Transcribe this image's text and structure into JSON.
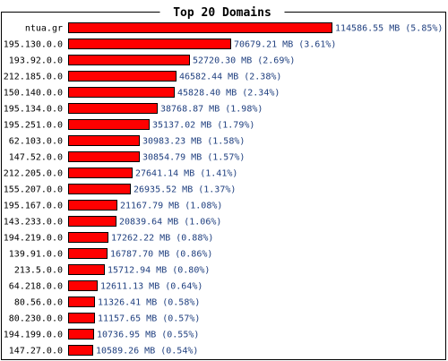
{
  "colors": {
    "bar_fill": "#ff0000",
    "bar_stroke": "#000000",
    "value_text": "#1f3f7f",
    "label_text": "#000000",
    "background": "#ffffff"
  },
  "chart_data": {
    "type": "bar",
    "orientation": "horizontal",
    "title": "Top 20 Domains",
    "xlabel": "",
    "ylabel": "",
    "unit": "MB",
    "grid": false,
    "legend": "none",
    "categories": [
      "ntua.gr",
      "195.130.0.0",
      "193.92.0.0",
      "212.185.0.0",
      "150.140.0.0",
      "195.134.0.0",
      "195.251.0.0",
      "62.103.0.0",
      "147.52.0.0",
      "212.205.0.0",
      "155.207.0.0",
      "195.167.0.0",
      "143.233.0.0",
      "194.219.0.0",
      "139.91.0.0",
      "213.5.0.0",
      "64.218.0.0",
      "80.56.0.0",
      "80.230.0.0",
      "194.199.0.0",
      "147.27.0.0"
    ],
    "values": [
      114586.55,
      70679.21,
      52720.3,
      46582.44,
      45828.4,
      38768.87,
      35137.02,
      30983.23,
      30854.79,
      27641.14,
      26935.52,
      21167.79,
      20839.64,
      17262.22,
      16787.7,
      15712.94,
      12611.13,
      11326.41,
      11157.65,
      10736.95,
      10589.26
    ],
    "value_labels": [
      "114586.55 MB (5.85%)",
      "70679.21 MB (3.61%)",
      "52720.30 MB (2.69%)",
      "46582.44 MB (2.38%)",
      "45828.40 MB (2.34%)",
      "38768.87 MB (1.98%)",
      "35137.02 MB (1.79%)",
      "30983.23 MB (1.58%)",
      "30854.79 MB (1.57%)",
      "27641.14 MB (1.41%)",
      "26935.52 MB (1.37%)",
      "21167.79 MB (1.08%)",
      "20839.64 MB (1.06%)",
      "17262.22 MB (0.88%)",
      "16787.70 MB (0.86%)",
      "15712.94 MB (0.80%)",
      "12611.13 MB (0.64%)",
      "11326.41 MB (0.58%)",
      "11157.65 MB (0.57%)",
      "10736.95 MB (0.55%)",
      "10589.26 MB (0.54%)"
    ],
    "percentages": [
      5.85,
      3.61,
      2.69,
      2.38,
      2.34,
      1.98,
      1.79,
      1.58,
      1.57,
      1.41,
      1.37,
      1.08,
      1.06,
      0.88,
      0.86,
      0.8,
      0.64,
      0.58,
      0.57,
      0.55,
      0.54
    ]
  }
}
